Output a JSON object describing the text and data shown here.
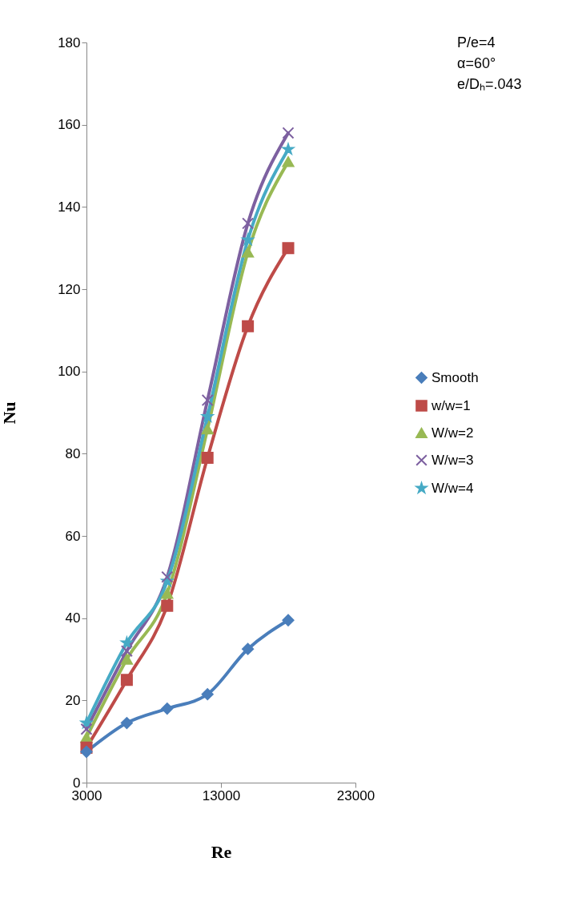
{
  "chart_data": {
    "type": "line",
    "xlabel": "Re",
    "ylabel": "Nu",
    "x": [
      3000,
      6000,
      9000,
      12000,
      15000,
      18000
    ],
    "series": [
      {
        "name": "Smooth",
        "color": "#4a7ebb",
        "marker": "diamond",
        "values": [
          7.5,
          14.5,
          18,
          21.5,
          32.5,
          39.5
        ]
      },
      {
        "name": "w/w=1",
        "color": "#be4b48",
        "marker": "square",
        "values": [
          8.5,
          25,
          43,
          79,
          111,
          130
        ]
      },
      {
        "name": "W/w=2",
        "color": "#98b954",
        "marker": "triangle",
        "values": [
          11,
          30,
          46,
          86,
          129,
          151
        ]
      },
      {
        "name": "W/w=3",
        "color": "#7d60a0",
        "marker": "cross",
        "values": [
          13,
          32,
          50,
          93,
          136,
          158
        ]
      },
      {
        "name": "W/w=4",
        "color": "#46aac5",
        "marker": "star",
        "values": [
          14.5,
          34,
          49,
          89,
          132,
          154
        ]
      }
    ],
    "xlim": [
      3000,
      23000
    ],
    "xticks": [
      3000,
      13000,
      23000
    ],
    "ylim": [
      0,
      180
    ],
    "yticks": [
      0,
      20,
      40,
      60,
      80,
      100,
      120,
      140,
      160,
      180
    ],
    "grid": false,
    "legend": "right",
    "line_style": "solid",
    "annotations": [
      "P/e=4",
      "α=60°",
      "e/Dₕ=.043"
    ]
  }
}
